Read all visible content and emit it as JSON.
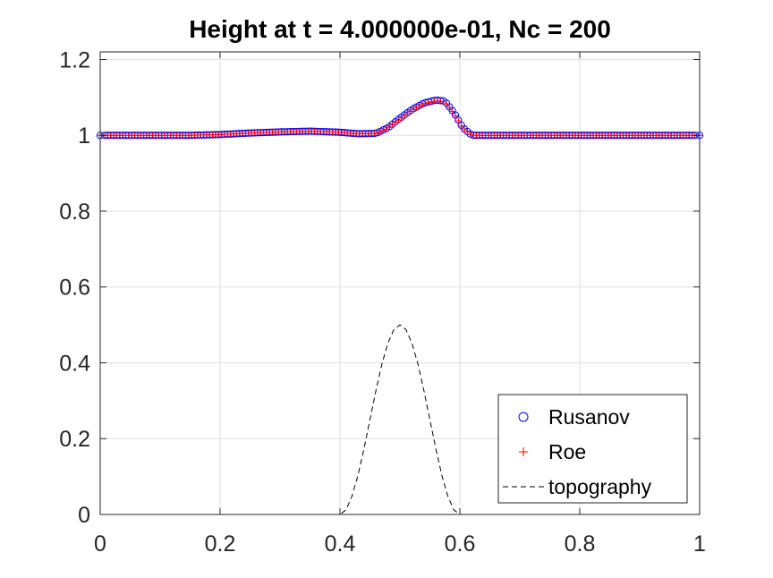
{
  "chart_data": {
    "type": "line",
    "title": "Height at t = 4.000000e-01, Nc = 200",
    "xlabel": "",
    "ylabel": "",
    "xlim": [
      0,
      1
    ],
    "ylim": [
      0,
      1.22
    ],
    "x_ticks": [
      0,
      0.2,
      0.4,
      0.6,
      0.8,
      1
    ],
    "x_tick_labels": [
      "0",
      "0.2",
      "0.4",
      "0.6",
      "0.8",
      "1"
    ],
    "y_ticks": [
      0,
      0.2,
      0.4,
      0.6,
      0.8,
      1,
      1.2
    ],
    "y_tick_labels": [
      "0",
      "0.2",
      "0.4",
      "0.6",
      "0.8",
      "1",
      "1.2"
    ],
    "grid": true,
    "legend_position": "bottom-right",
    "series": [
      {
        "name": "Rusanov",
        "marker": "circle",
        "color": "#0000ff",
        "profile_x": [
          0,
          0.15,
          0.2,
          0.25,
          0.3,
          0.35,
          0.4,
          0.43,
          0.46,
          0.48,
          0.5,
          0.52,
          0.54,
          0.56,
          0.575,
          0.59,
          0.605,
          0.62,
          0.7,
          0.8,
          1
        ],
        "profile_y": [
          1.0,
          1.0,
          1.002,
          1.006,
          1.009,
          1.011,
          1.008,
          1.004,
          1.005,
          1.02,
          1.045,
          1.068,
          1.085,
          1.093,
          1.09,
          1.06,
          1.02,
          1.0,
          1.0,
          1.0,
          1.0
        ]
      },
      {
        "name": "Roe",
        "marker": "plus",
        "color": "#ff0000",
        "profile_x": [
          0,
          0.15,
          0.2,
          0.25,
          0.3,
          0.35,
          0.4,
          0.43,
          0.46,
          0.48,
          0.5,
          0.52,
          0.54,
          0.56,
          0.575,
          0.59,
          0.605,
          0.62,
          0.7,
          0.8,
          1
        ],
        "profile_y": [
          1.0,
          1.0,
          1.002,
          1.006,
          1.009,
          1.011,
          1.008,
          1.004,
          1.005,
          1.018,
          1.043,
          1.066,
          1.083,
          1.091,
          1.088,
          1.058,
          1.018,
          1.0,
          1.0,
          1.0,
          1.0
        ]
      },
      {
        "name": "topography",
        "style": "dashed",
        "color": "#000000",
        "profile_x": [
          0,
          0.4,
          0.41,
          0.42,
          0.43,
          0.44,
          0.45,
          0.46,
          0.47,
          0.48,
          0.49,
          0.5,
          0.51,
          0.52,
          0.53,
          0.54,
          0.55,
          0.56,
          0.57,
          0.58,
          0.59,
          0.6,
          1
        ],
        "profile_y": [
          0,
          0,
          0.012,
          0.048,
          0.103,
          0.173,
          0.25,
          0.327,
          0.397,
          0.452,
          0.488,
          0.5,
          0.488,
          0.452,
          0.397,
          0.327,
          0.25,
          0.173,
          0.103,
          0.048,
          0.012,
          0,
          0
        ]
      }
    ],
    "num_cells": 200
  }
}
